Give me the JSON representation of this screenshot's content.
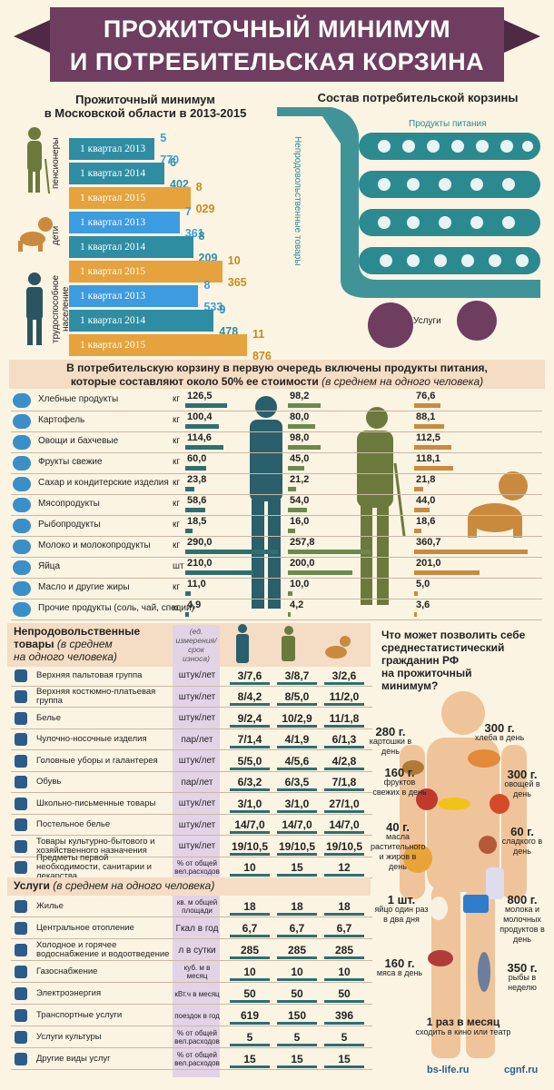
{
  "title": {
    "line1": "ПРОЖИТОЧНЫЙ МИНИМУМ",
    "line2": "И ПОТРЕБИТЕЛЬСКАЯ КОРЗИНА"
  },
  "minimum": {
    "title1": "Прожиточный минимум",
    "title2": "в Московской области в 2013-2015",
    "groups": [
      "пенсионеры",
      "дети",
      "трудоспособное население"
    ],
    "rows": [
      {
        "label": "1 квартал 2013",
        "value": "5 770"
      },
      {
        "label": "1 квартал 2014",
        "value": "6 402"
      },
      {
        "label": "1 квартал 2015",
        "value": "8 029"
      },
      {
        "label": "1 квартал 2013",
        "value": "7 361"
      },
      {
        "label": "1 квартал 2014",
        "value": "8 209"
      },
      {
        "label": "1 квартал 2015",
        "value": "10 365"
      },
      {
        "label": "1 квартал 2013",
        "value": "8 533"
      },
      {
        "label": "1 квартал 2014",
        "value": "9 478"
      },
      {
        "label": "1 квартал 2015",
        "value": "11 876"
      }
    ]
  },
  "basket": {
    "title": "Состав потребительской корзины",
    "food": "Продукты питания",
    "nonfood": "Непродовольственные товары",
    "services": "Услуги"
  },
  "food_header": {
    "line1": "В потребительскую корзину в первую очередь включены продукты питания,",
    "line2": "которые составляют около 50% ее стоимости",
    "line2b": "(в среднем на одного человека)"
  },
  "food": [
    {
      "name": "Хлебные продукты",
      "unit": "кг",
      "a": "126,5",
      "p": "98,2",
      "c": "76,6"
    },
    {
      "name": "Картофель",
      "unit": "кг",
      "a": "100,4",
      "p": "80,0",
      "c": "88,1"
    },
    {
      "name": "Овощи и бахчевые",
      "unit": "кг",
      "a": "114,6",
      "p": "98,0",
      "c": "112,5"
    },
    {
      "name": "Фрукты свежие",
      "unit": "кг",
      "a": "60,0",
      "p": "45,0",
      "c": "118,1"
    },
    {
      "name": "Сахар и кондитерские изделия",
      "unit": "кг",
      "a": "23,8",
      "p": "21,2",
      "c": "21,8"
    },
    {
      "name": "Мясопродукты",
      "unit": "кг",
      "a": "58,6",
      "p": "54,0",
      "c": "44,0"
    },
    {
      "name": "Рыбопродукты",
      "unit": "кг",
      "a": "18,5",
      "p": "16,0",
      "c": "18,6"
    },
    {
      "name": "Молоко и молокопродукты",
      "unit": "кг",
      "a": "290,0",
      "p": "257,8",
      "c": "360,7"
    },
    {
      "name": "Яйца",
      "unit": "шт",
      "a": "210,0",
      "p": "200,0",
      "c": "201,0"
    },
    {
      "name": "Масло и другие жиры",
      "unit": "кг",
      "a": "11,0",
      "p": "10,0",
      "c": "5,0"
    },
    {
      "name": "Прочие продукты (соль, чай, специи)",
      "unit": "кг",
      "a": "4,9",
      "p": "4,2",
      "c": "3,6"
    }
  ],
  "nonfood": {
    "title1": "Непродовольственные",
    "title2": "товары",
    "title3": "(в среднем",
    "title4": "на одного человека)",
    "unit_hdr": "(ед. измерения/ срок износа)",
    "rows": [
      {
        "name": "Верхняя пальтовая группа",
        "unit": "штук/лет",
        "a": "3/7,6",
        "p": "3/8,7",
        "c": "3/2,6"
      },
      {
        "name": "Верхняя костюмно-платьевая группа",
        "unit": "штук/лет",
        "a": "8/4,2",
        "p": "8/5,0",
        "c": "11/2,0"
      },
      {
        "name": "Белье",
        "unit": "штук/лет",
        "a": "9/2,4",
        "p": "10/2,9",
        "c": "11/1,8"
      },
      {
        "name": "Чулочно-носочные изделия",
        "unit": "пар/лет",
        "a": "7/1,4",
        "p": "4/1,9",
        "c": "6/1,3"
      },
      {
        "name": "Головные уборы и галантерея",
        "unit": "штук/лет",
        "a": "5/5,0",
        "p": "4/5,6",
        "c": "4/2,8"
      },
      {
        "name": "Обувь",
        "unit": "пар/лет",
        "a": "6/3,2",
        "p": "6/3,5",
        "c": "7/1,8"
      },
      {
        "name": "Школьно-письменные товары",
        "unit": "штук/лет",
        "a": "3/1,0",
        "p": "3/1,0",
        "c": "27/1,0"
      },
      {
        "name": "Постельное белье",
        "unit": "штук/лет",
        "a": "14/7,0",
        "p": "14/7,0",
        "c": "14/7,0"
      },
      {
        "name": "Товары культурно-бытового и хозяйственного назначения",
        "unit": "штук/лет",
        "a": "19/10,5",
        "p": "19/10,5",
        "c": "19/10,5"
      },
      {
        "name": "Предметы первой необходимости, санитарии и лекарства",
        "unit": "% от общей вел.расходов",
        "a": "10",
        "p": "15",
        "c": "12"
      }
    ]
  },
  "services": {
    "title": "Услуги",
    "title2": "(в среднем на одного человека)",
    "rows": [
      {
        "name": "Жилье",
        "unit": "кв. м общей площади",
        "a": "18",
        "p": "18",
        "c": "18"
      },
      {
        "name": "Центральное отопление",
        "unit": "Гкал в год",
        "a": "6,7",
        "p": "6,7",
        "c": "6,7"
      },
      {
        "name": "Холодное и горячее водоснабжение и водоотведение",
        "unit": "л в сутки",
        "a": "285",
        "p": "285",
        "c": "285"
      },
      {
        "name": "Газоснабжение",
        "unit": "куб. м в месяц",
        "a": "10",
        "p": "10",
        "c": "10"
      },
      {
        "name": "Электроэнергия",
        "unit": "кВт.ч в месяц",
        "a": "50",
        "p": "50",
        "c": "50"
      },
      {
        "name": "Транспортные услуги",
        "unit": "поездок в год",
        "a": "619",
        "p": "150",
        "c": "396"
      },
      {
        "name": "Услуги культуры",
        "unit": "% от общей вел.расходов",
        "a": "5",
        "p": "5",
        "c": "5"
      },
      {
        "name": "Другие виды услуг",
        "unit": "% от общей вел.расходов",
        "a": "15",
        "p": "15",
        "c": "15"
      }
    ]
  },
  "question": {
    "l1": "Что может позволить себе",
    "l2": "среднестатистический",
    "l3": "гражданин РФ",
    "l4": "на прожиточный",
    "l5": "минимум?"
  },
  "notes": [
    {
      "v": "280 г.",
      "t": "картошки в день"
    },
    {
      "v": "300 г.",
      "t": "хлеба в день"
    },
    {
      "v": "160 г.",
      "t": "фруктов свежих в день"
    },
    {
      "v": "300 г.",
      "t": "овощей в день"
    },
    {
      "v": "40 г.",
      "t": "масла растительного и жиров в день"
    },
    {
      "v": "60 г.",
      "t": "сладкого в день"
    },
    {
      "v": "1 шт.",
      "t": "яйцо один раз в два дня"
    },
    {
      "v": "800 г.",
      "t": "молока и молочных продуктов в день"
    },
    {
      "v": "160 г.",
      "t": "мяса в день"
    },
    {
      "v": "350 г.",
      "t": "рыбы в неделю"
    },
    {
      "v": "1 раз в месяц",
      "t": "сходить в кино или театр"
    }
  ],
  "footer": {
    "left": "bs-life.ru",
    "right": "cgnf.ru"
  },
  "colors": {
    "banner": "#6e3d60",
    "teal": "#2f8da3",
    "blue": "#3d9be0",
    "orange": "#e6a23c",
    "dark": "#2a5f6b"
  }
}
